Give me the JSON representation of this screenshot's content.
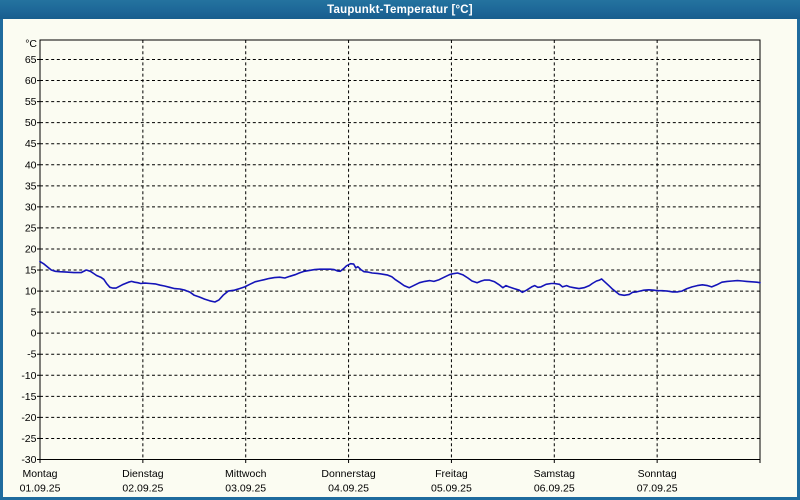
{
  "window": {
    "title": "Taupunkt-Temperatur [°C]"
  },
  "colors": {
    "titlebar": "#1f6b9e",
    "chrome_border": "#1f6b9e",
    "panel_bg": "#fbfcf2",
    "grid": "#000000",
    "frame": "#000000",
    "line": "#1414b8",
    "tick_text": "#000000",
    "title_text": "#ffffff"
  },
  "chart_data": {
    "type": "line",
    "title": "Taupunkt-Temperatur [°C]",
    "xlabel": "",
    "ylabel": "°C",
    "y_unit": "°C",
    "ylim": [
      -30,
      65
    ],
    "y_tick_step": 5,
    "y_ticks": [
      65,
      60,
      55,
      50,
      45,
      40,
      35,
      30,
      25,
      20,
      15,
      10,
      5,
      0,
      -5,
      -10,
      -15,
      -20,
      -25,
      -30
    ],
    "grid": "dashed",
    "legend": "none",
    "x_axis": {
      "unit": "day",
      "range_days": 7,
      "days": [
        {
          "weekday": "Montag",
          "date": "01.09.25"
        },
        {
          "weekday": "Dienstag",
          "date": "02.09.25"
        },
        {
          "weekday": "Mittwoch",
          "date": "03.09.25"
        },
        {
          "weekday": "Donnerstag",
          "date": "04.09.25"
        },
        {
          "weekday": "Freitag",
          "date": "05.09.25"
        },
        {
          "weekday": "Samstag",
          "date": "06.09.25"
        },
        {
          "weekday": "Sonntag",
          "date": "07.09.25"
        }
      ]
    },
    "series": [
      {
        "name": "Taupunkt-Temperatur",
        "color": "#1414b8",
        "points": [
          [
            0.0,
            17.0
          ],
          [
            0.04,
            16.4
          ],
          [
            0.08,
            15.6
          ],
          [
            0.11,
            15.0
          ],
          [
            0.15,
            14.7
          ],
          [
            0.19,
            14.6
          ],
          [
            0.26,
            14.5
          ],
          [
            0.33,
            14.4
          ],
          [
            0.4,
            14.4
          ],
          [
            0.45,
            15.0
          ],
          [
            0.49,
            14.7
          ],
          [
            0.52,
            14.2
          ],
          [
            0.55,
            13.7
          ],
          [
            0.59,
            13.3
          ],
          [
            0.62,
            12.8
          ],
          [
            0.65,
            11.7
          ],
          [
            0.68,
            10.9
          ],
          [
            0.71,
            10.7
          ],
          [
            0.74,
            10.7
          ],
          [
            0.77,
            11.1
          ],
          [
            0.8,
            11.5
          ],
          [
            0.83,
            11.8
          ],
          [
            0.86,
            12.1
          ],
          [
            0.89,
            12.3
          ],
          [
            0.92,
            12.1
          ],
          [
            0.95,
            12.0
          ],
          [
            0.98,
            11.8
          ],
          [
            1.02,
            11.9
          ],
          [
            1.07,
            11.8
          ],
          [
            1.12,
            11.7
          ],
          [
            1.17,
            11.4
          ],
          [
            1.21,
            11.2
          ],
          [
            1.26,
            10.9
          ],
          [
            1.31,
            10.6
          ],
          [
            1.36,
            10.5
          ],
          [
            1.41,
            10.2
          ],
          [
            1.46,
            9.7
          ],
          [
            1.5,
            9.0
          ],
          [
            1.55,
            8.6
          ],
          [
            1.6,
            8.1
          ],
          [
            1.65,
            7.7
          ],
          [
            1.7,
            7.4
          ],
          [
            1.74,
            7.9
          ],
          [
            1.78,
            9.0
          ],
          [
            1.83,
            10.0
          ],
          [
            1.89,
            10.2
          ],
          [
            1.94,
            10.6
          ],
          [
            1.99,
            11.0
          ],
          [
            2.04,
            11.6
          ],
          [
            2.09,
            12.2
          ],
          [
            2.14,
            12.5
          ],
          [
            2.18,
            12.7
          ],
          [
            2.23,
            13.0
          ],
          [
            2.28,
            13.2
          ],
          [
            2.33,
            13.3
          ],
          [
            2.38,
            13.1
          ],
          [
            2.43,
            13.5
          ],
          [
            2.48,
            13.9
          ],
          [
            2.52,
            14.3
          ],
          [
            2.57,
            14.7
          ],
          [
            2.62,
            14.9
          ],
          [
            2.67,
            15.1
          ],
          [
            2.72,
            15.2
          ],
          [
            2.77,
            15.2
          ],
          [
            2.82,
            15.2
          ],
          [
            2.86,
            15.1
          ],
          [
            2.89,
            14.8
          ],
          [
            2.92,
            14.7
          ],
          [
            2.95,
            15.3
          ],
          [
            2.98,
            16.0
          ],
          [
            3.02,
            16.5
          ],
          [
            3.05,
            16.4
          ],
          [
            3.07,
            15.5
          ],
          [
            3.09,
            15.8
          ],
          [
            3.12,
            15.1
          ],
          [
            3.15,
            14.6
          ],
          [
            3.19,
            14.5
          ],
          [
            3.23,
            14.3
          ],
          [
            3.28,
            14.2
          ],
          [
            3.33,
            14.0
          ],
          [
            3.38,
            13.8
          ],
          [
            3.42,
            13.4
          ],
          [
            3.45,
            12.8
          ],
          [
            3.5,
            12.0
          ],
          [
            3.54,
            11.3
          ],
          [
            3.59,
            10.8
          ],
          [
            3.64,
            11.4
          ],
          [
            3.69,
            12.0
          ],
          [
            3.74,
            12.3
          ],
          [
            3.79,
            12.5
          ],
          [
            3.83,
            12.3
          ],
          [
            3.88,
            12.7
          ],
          [
            3.93,
            13.3
          ],
          [
            3.98,
            13.9
          ],
          [
            4.01,
            14.1
          ],
          [
            4.06,
            14.3
          ],
          [
            4.11,
            13.9
          ],
          [
            4.16,
            13.1
          ],
          [
            4.2,
            12.4
          ],
          [
            4.25,
            12.0
          ],
          [
            4.29,
            12.4
          ],
          [
            4.32,
            12.6
          ],
          [
            4.37,
            12.6
          ],
          [
            4.42,
            12.2
          ],
          [
            4.47,
            11.4
          ],
          [
            4.5,
            10.8
          ],
          [
            4.53,
            11.3
          ],
          [
            4.56,
            11.0
          ],
          [
            4.61,
            10.6
          ],
          [
            4.66,
            10.2
          ],
          [
            4.69,
            9.7
          ],
          [
            4.73,
            10.2
          ],
          [
            4.78,
            11.0
          ],
          [
            4.81,
            11.3
          ],
          [
            4.84,
            10.9
          ],
          [
            4.87,
            11.0
          ],
          [
            4.92,
            11.6
          ],
          [
            4.97,
            11.8
          ],
          [
            5.0,
            11.8
          ],
          [
            5.05,
            11.6
          ],
          [
            5.08,
            11.0
          ],
          [
            5.12,
            11.3
          ],
          [
            5.15,
            11.0
          ],
          [
            5.19,
            10.8
          ],
          [
            5.24,
            10.6
          ],
          [
            5.29,
            10.8
          ],
          [
            5.34,
            11.3
          ],
          [
            5.37,
            11.8
          ],
          [
            5.41,
            12.4
          ],
          [
            5.44,
            12.6
          ],
          [
            5.46,
            12.9
          ],
          [
            5.49,
            12.2
          ],
          [
            5.53,
            11.3
          ],
          [
            5.56,
            10.6
          ],
          [
            5.6,
            9.8
          ],
          [
            5.63,
            9.2
          ],
          [
            5.68,
            9.0
          ],
          [
            5.73,
            9.2
          ],
          [
            5.76,
            9.7
          ],
          [
            5.8,
            9.8
          ],
          [
            5.83,
            10.0
          ],
          [
            5.87,
            10.2
          ],
          [
            5.92,
            10.3
          ],
          [
            5.97,
            10.2
          ],
          [
            6.0,
            10.1
          ],
          [
            6.05,
            10.1
          ],
          [
            6.1,
            10.0
          ],
          [
            6.15,
            9.8
          ],
          [
            6.2,
            9.8
          ],
          [
            6.24,
            10.0
          ],
          [
            6.29,
            10.6
          ],
          [
            6.34,
            11.0
          ],
          [
            6.39,
            11.3
          ],
          [
            6.44,
            11.5
          ],
          [
            6.49,
            11.3
          ],
          [
            6.53,
            11.0
          ],
          [
            6.58,
            11.5
          ],
          [
            6.63,
            12.1
          ],
          [
            6.68,
            12.3
          ],
          [
            6.73,
            12.4
          ],
          [
            6.78,
            12.5
          ],
          [
            6.83,
            12.4
          ],
          [
            6.87,
            12.3
          ],
          [
            6.92,
            12.2
          ],
          [
            6.97,
            12.1
          ],
          [
            7.0,
            12.0
          ]
        ]
      }
    ]
  }
}
